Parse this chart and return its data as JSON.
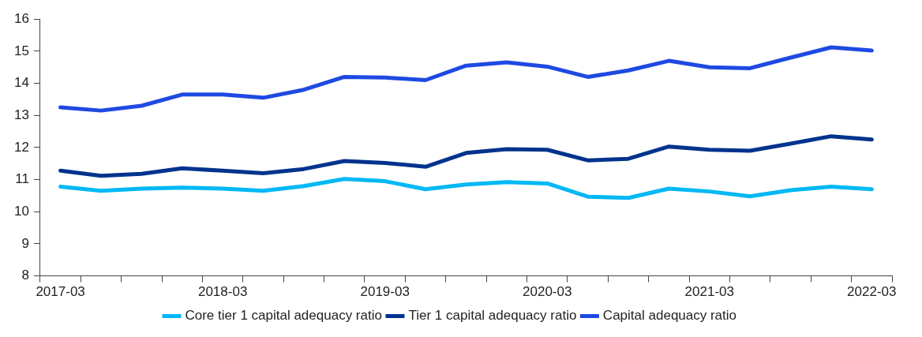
{
  "chart_data": {
    "type": "line",
    "categories": [
      "2017-03",
      null,
      null,
      null,
      "2018-03",
      null,
      null,
      null,
      "2019-03",
      null,
      null,
      null,
      "2020-03",
      null,
      null,
      null,
      "2021-03",
      null,
      null,
      null,
      "2022-03"
    ],
    "series": [
      {
        "name": "Core tier 1 capital adequacy ratio",
        "color": "#00b8f5",
        "values": [
          10.78,
          10.65,
          10.72,
          10.75,
          10.72,
          10.65,
          10.8,
          11.02,
          10.95,
          10.7,
          10.85,
          10.92,
          10.88,
          10.47,
          10.43,
          10.72,
          10.63,
          10.48,
          10.67,
          10.78,
          10.7
        ]
      },
      {
        "name": "Tier 1 capital adequacy ratio",
        "color": "#00338d",
        "values": [
          11.28,
          11.12,
          11.18,
          11.35,
          11.28,
          11.2,
          11.33,
          11.58,
          11.52,
          11.4,
          11.83,
          11.95,
          11.93,
          11.6,
          11.65,
          12.03,
          11.93,
          11.9,
          12.12,
          12.35,
          12.25
        ]
      },
      {
        "name": "Capital adequacy ratio",
        "color": "#1e49e2",
        "values": [
          13.25,
          13.15,
          13.3,
          13.65,
          13.65,
          13.55,
          13.8,
          14.2,
          14.18,
          14.1,
          14.55,
          14.65,
          14.52,
          14.2,
          14.4,
          14.7,
          14.5,
          14.47,
          14.8,
          15.12,
          15.02
        ]
      }
    ],
    "ylim": [
      8,
      16
    ],
    "yticks": [
      8,
      9,
      10,
      11,
      12,
      13,
      14,
      15,
      16
    ],
    "grid": false,
    "legend": "bottom",
    "marker": "none",
    "line_style": "solid"
  }
}
